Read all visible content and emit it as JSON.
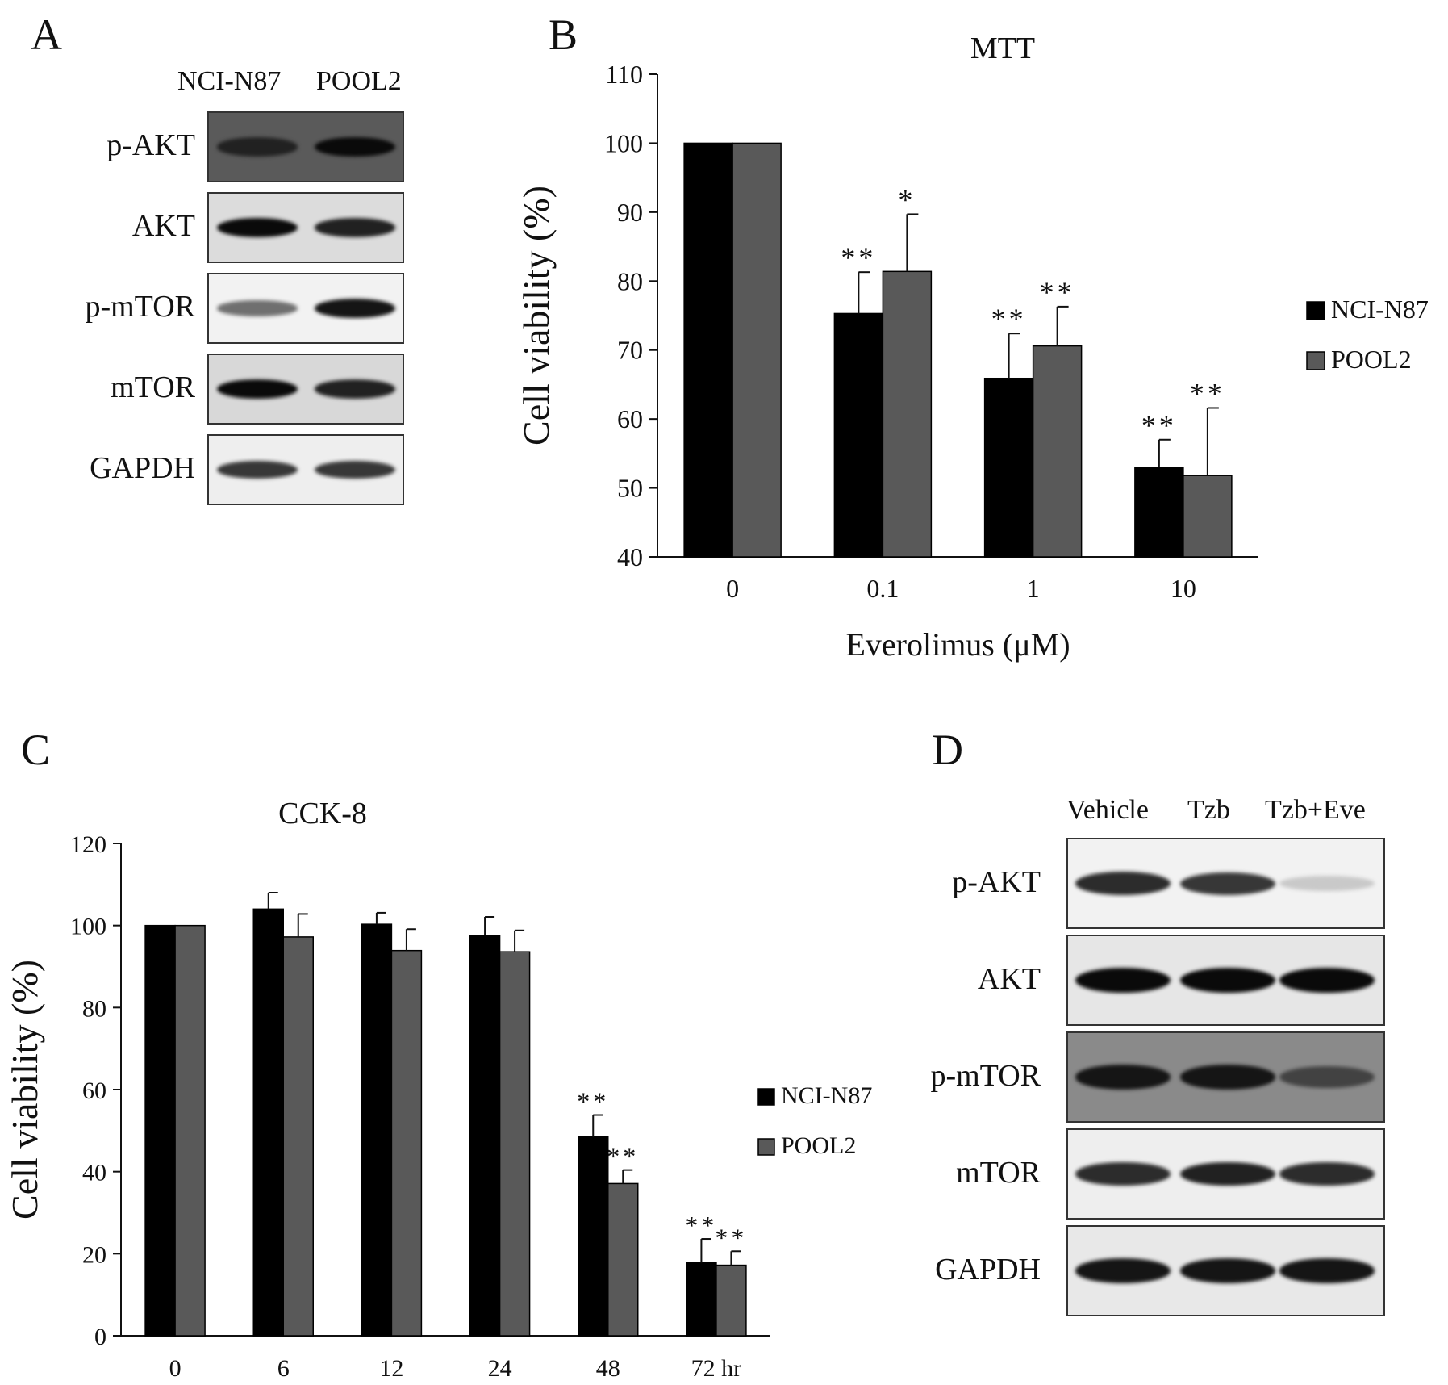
{
  "panels": {
    "A": {
      "letter": "A",
      "lanes": [
        "NCI-N87",
        "POOL2"
      ],
      "rows": [
        {
          "label": "p-AKT",
          "bg": "#5a5a5a",
          "intensity": [
            0.9,
            1.0
          ]
        },
        {
          "label": "AKT",
          "bg": "#dcdcdc",
          "intensity": [
            1.0,
            0.9
          ]
        },
        {
          "label": "p-mTOR",
          "bg": "#f2f2f2",
          "intensity": [
            0.55,
            0.95
          ]
        },
        {
          "label": "mTOR",
          "bg": "#d8d8d8",
          "intensity": [
            1.0,
            0.9
          ]
        },
        {
          "label": "GAPDH",
          "bg": "#eeeeee",
          "intensity": [
            0.8,
            0.8
          ]
        }
      ]
    },
    "B": {
      "letter": "B"
    },
    "C": {
      "letter": "C"
    },
    "D": {
      "letter": "D",
      "lanes": [
        "Vehicle",
        "Tzb",
        "Tzb+Eve"
      ],
      "rows": [
        {
          "label": "p-AKT",
          "bg": "#f2f2f2",
          "intensity": [
            0.85,
            0.8,
            0.15
          ]
        },
        {
          "label": "AKT",
          "bg": "#e6e6e6",
          "intensity": [
            1.0,
            1.0,
            1.0
          ]
        },
        {
          "label": "p-mTOR",
          "bg": "#8a8a8a",
          "intensity": [
            0.95,
            0.95,
            0.75
          ]
        },
        {
          "label": "mTOR",
          "bg": "#eeeeee",
          "intensity": [
            0.85,
            0.9,
            0.85
          ]
        },
        {
          "label": "GAPDH",
          "bg": "#e8e8e8",
          "intensity": [
            0.95,
            0.95,
            0.95
          ]
        }
      ]
    }
  },
  "chart_data": [
    {
      "type": "bar",
      "title": "MTT",
      "xlabel": "Everolimus (μM)",
      "ylabel": "Cell viability (%)",
      "ylim": [
        40,
        110
      ],
      "yticks": [
        40,
        50,
        60,
        70,
        80,
        90,
        100,
        110
      ],
      "categories": [
        "0",
        "0.1",
        "1",
        "10"
      ],
      "series": [
        {
          "name": "NCI-N87",
          "color": "#000000",
          "values": [
            100,
            75.3,
            65.9,
            53
          ],
          "errors": [
            0,
            6,
            6.5,
            4
          ],
          "annotations": [
            "",
            "**",
            "**",
            "**"
          ]
        },
        {
          "name": "POOL2",
          "color": "#595959",
          "values": [
            100,
            81.4,
            70.6,
            51.8
          ],
          "errors": [
            0,
            8.3,
            5.7,
            9.8
          ],
          "annotations": [
            "",
            "*",
            "**",
            "**"
          ]
        }
      ],
      "legend": "right"
    },
    {
      "type": "bar",
      "title": "CCK-8",
      "xlabel": "",
      "ylabel": "Cell viability (%)",
      "ylim": [
        0,
        120
      ],
      "yticks": [
        0,
        20,
        40,
        60,
        80,
        100,
        120
      ],
      "categories": [
        "0",
        "6",
        "12",
        "24",
        "48",
        "72 hr"
      ],
      "series": [
        {
          "name": "NCI-N87",
          "color": "#000000",
          "values": [
            100,
            104,
            100.3,
            97.6,
            48.5,
            17.8
          ],
          "errors": [
            0,
            4,
            2.8,
            4.5,
            5.3,
            5.8
          ],
          "annotations": [
            "",
            "",
            "",
            "",
            "**",
            "**"
          ]
        },
        {
          "name": "POOL2",
          "color": "#595959",
          "values": [
            100,
            97.2,
            93.9,
            93.6,
            37.1,
            17.2
          ],
          "errors": [
            0,
            5.6,
            5.2,
            5.2,
            3.3,
            3.4
          ],
          "annotations": [
            "",
            "",
            "",
            "",
            "**",
            "**"
          ]
        }
      ],
      "legend": "right"
    }
  ]
}
